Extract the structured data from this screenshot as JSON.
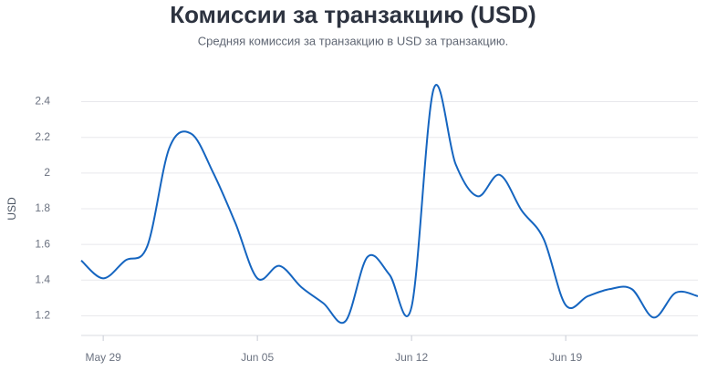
{
  "chart_data": {
    "type": "line",
    "title": "Комиссии за транзакцию (USD)",
    "subtitle": "Средняя комиссия за транзакцию в USD за транзакцию.",
    "y_label": "USD",
    "categories": [
      null,
      "May 29",
      null,
      null,
      null,
      null,
      null,
      null,
      "Jun 05",
      null,
      null,
      null,
      null,
      null,
      null,
      "Jun 12",
      null,
      null,
      null,
      null,
      null,
      null,
      "Jun 19",
      null,
      null,
      null,
      null,
      null,
      null
    ],
    "series": [
      {
        "name": "USD",
        "color": "#1565c0",
        "values": [
          1.51,
          1.41,
          1.51,
          1.59,
          2.14,
          2.22,
          2.0,
          1.72,
          1.41,
          1.48,
          1.36,
          1.27,
          1.17,
          1.53,
          1.43,
          1.25,
          2.47,
          2.05,
          1.87,
          1.99,
          1.79,
          1.63,
          1.26,
          1.31,
          1.35,
          1.35,
          1.19,
          1.33,
          1.31
        ]
      }
    ],
    "ylim": [
      1.09,
      2.51
    ],
    "yticks": [
      1.2,
      1.4,
      1.6,
      1.8,
      2,
      2.2,
      2.4
    ],
    "grid": true
  }
}
